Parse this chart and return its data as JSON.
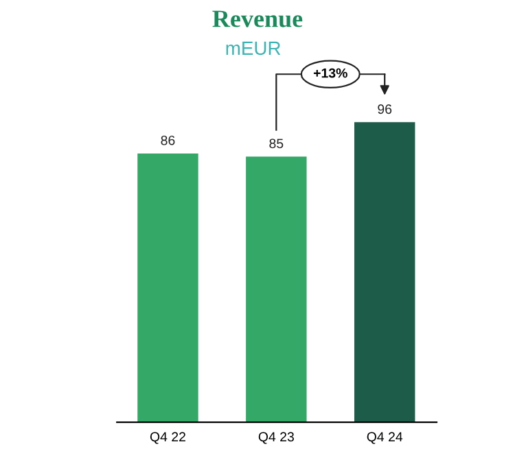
{
  "chart_data": {
    "type": "bar",
    "title": "Revenue",
    "subtitle": "mEUR",
    "categories": [
      "Q4 22",
      "Q4 23",
      "Q4 24"
    ],
    "values": [
      86,
      85,
      96
    ],
    "colors": [
      "#34a866",
      "#34a866",
      "#1e5c4a"
    ],
    "data_labels": true,
    "grid": false,
    "legend": false,
    "annotations": [
      "+13%"
    ]
  }
}
